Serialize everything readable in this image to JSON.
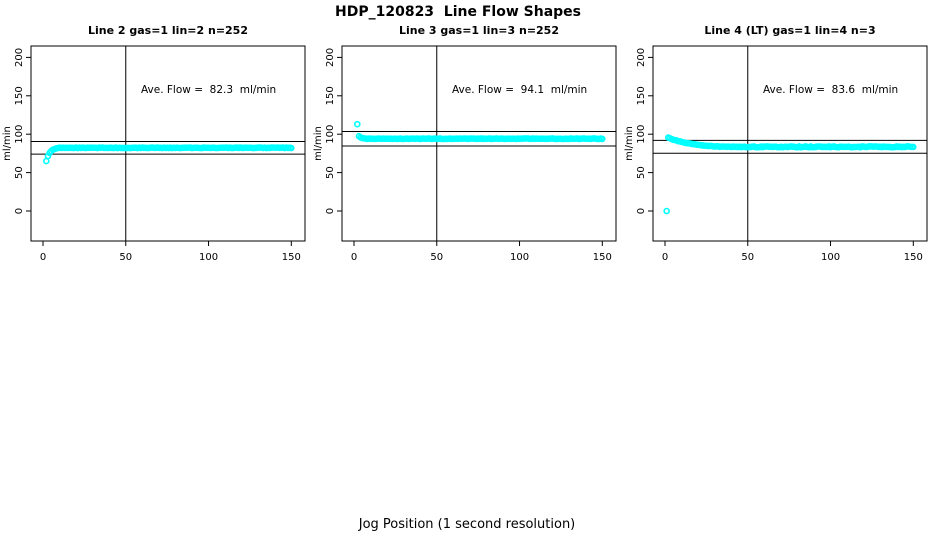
{
  "page": {
    "title": "HDP_120823  Line Flow Shapes",
    "xlabel": "Jog Position (1 second resolution)"
  },
  "chart_data": {
    "type": "scatter",
    "title": "HDP_120823  Line Flow Shapes",
    "xlabel": "Jog Position (1 second resolution)",
    "ylabel": "ml/min",
    "x_ticks": [
      0,
      50,
      100,
      150
    ],
    "y_ticks": [
      0,
      50,
      100,
      150,
      200
    ],
    "xlim": [
      0,
      150
    ],
    "ylim": [
      -40,
      215
    ],
    "grid": false,
    "point_color": "#00ffff",
    "line_color": "#000000",
    "marker": "open-circle",
    "panels": [
      {
        "title": "Line 2 gas=1 lin=2 n=252",
        "annotation": "Ave. Flow =  82.3  ml/min",
        "ave_flow": 82.3,
        "n": 252,
        "ref_lines": [
          90.5,
          74.1
        ],
        "vline_x": 50,
        "outliers": [
          [
            2,
            65
          ]
        ],
        "segments": [
          {
            "x0": 3,
            "y": [
              71.5,
              75.5,
              78.2,
              79.8,
              80.8,
              81.5,
              82.0
            ],
            "jitter": 0.15
          },
          {
            "x0": 10,
            "x1": 150,
            "value": 82.3,
            "jitter": 0.35
          }
        ]
      },
      {
        "title": "Line 3 gas=1 lin=3 n=252",
        "annotation": "Ave. Flow =  94.1  ml/min",
        "ave_flow": 94.1,
        "n": 252,
        "ref_lines": [
          103.5,
          84.7
        ],
        "vline_x": 50,
        "outliers": [
          [
            2,
            113
          ]
        ],
        "segments": [
          {
            "x0": 3,
            "y": [
              97.3,
              95.8,
              95.0,
              94.6,
              94.3
            ],
            "jitter": 0.15
          },
          {
            "x0": 8,
            "x1": 150,
            "value": 94.1,
            "jitter": 0.35
          }
        ]
      },
      {
        "title": "Line 4 (LT) gas=1 lin=4 n=3",
        "annotation": "Ave. Flow =  83.6  ml/min",
        "ave_flow": 83.6,
        "n": 3,
        "ref_lines": [
          92.0,
          75.2
        ],
        "vline_x": 50,
        "outliers": [
          [
            1,
            0
          ]
        ],
        "segments": [
          {
            "x0": 2,
            "y": [
              95.5,
              94.6,
              93.8,
              93.0,
              92.3,
              91.7,
              91.1,
              90.5,
              90.0,
              89.5,
              89.0,
              88.6,
              88.2,
              87.8,
              87.4,
              87.1,
              86.8,
              86.5,
              86.2,
              85.9,
              85.7,
              85.4,
              85.2,
              85.0,
              84.8,
              84.7,
              84.5,
              84.4,
              84.2,
              84.1,
              84.0,
              83.9,
              83.85,
              83.8,
              83.75,
              83.7,
              83.7,
              83.65,
              83.6
            ],
            "jitter": 0.3
          },
          {
            "x0": 41,
            "x1": 150,
            "value": 83.55,
            "jitter": 0.6
          }
        ]
      }
    ]
  }
}
